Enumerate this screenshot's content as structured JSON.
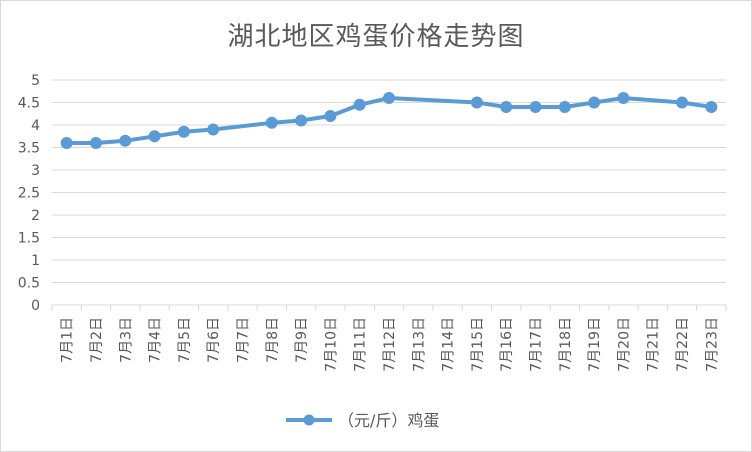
{
  "chart_data": {
    "type": "line",
    "title": "湖北地区鸡蛋价格走势图",
    "categories": [
      "7月1日",
      "7月2日",
      "7月3日",
      "7月4日",
      "7月5日",
      "7月6日",
      "7月7日",
      "7月8日",
      "7月9日",
      "7月10日",
      "7月11日",
      "7月12日",
      "7月13日",
      "7月14日",
      "7月15日",
      "7月16日",
      "7月17日",
      "7月18日",
      "7月19日",
      "7月20日",
      "7月21日",
      "7月22日",
      "7月23日"
    ],
    "series": [
      {
        "name": "（元/斤）鸡蛋",
        "color": "#5b9bd5",
        "values": [
          3.6,
          3.6,
          3.65,
          3.75,
          3.85,
          3.9,
          null,
          4.05,
          4.1,
          4.2,
          4.45,
          4.6,
          null,
          null,
          4.5,
          4.4,
          4.4,
          4.4,
          4.5,
          4.6,
          null,
          4.5,
          4.4
        ]
      }
    ],
    "yticks": [
      "0",
      "0.5",
      "1",
      "1.5",
      "2",
      "2.5",
      "3",
      "3.5",
      "4",
      "4.5",
      "5"
    ],
    "ylim": [
      0,
      5
    ],
    "grid": true,
    "legend": "bottom"
  }
}
